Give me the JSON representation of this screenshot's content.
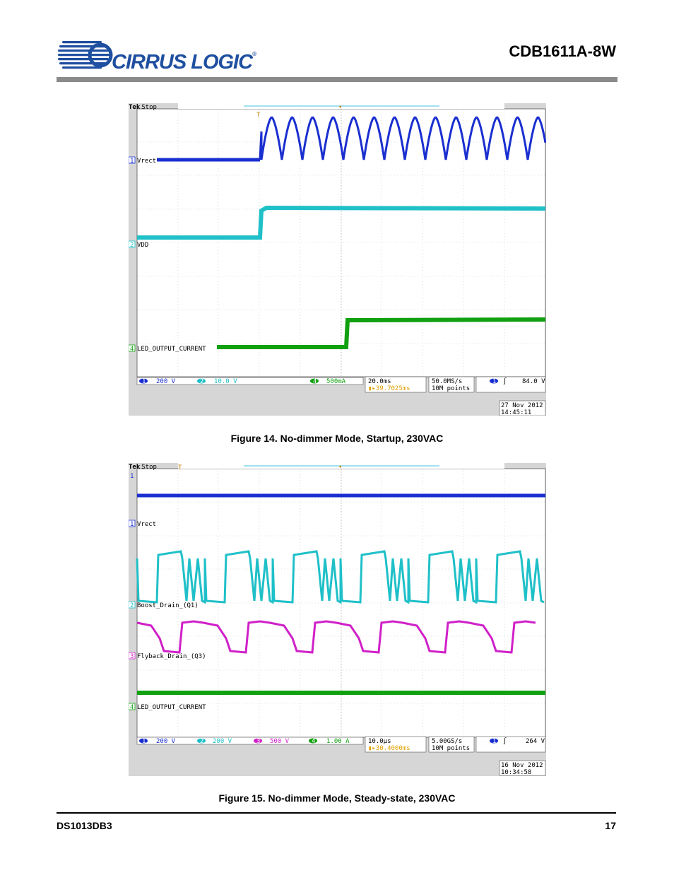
{
  "header": {
    "company": "CIRRUS LOGIC",
    "registered": "®",
    "doc_title": "CDB1611A-8W",
    "logo_icon": "cirrus-logic-swoosh-icon"
  },
  "figures": [
    {
      "caption": "Figure 14.  No-dimmer Mode, Startup, 230VAC",
      "brand": "Tek",
      "state": "Stop",
      "channels": [
        {
          "num": "1",
          "label": "Vrect",
          "color": "#1a2fd0",
          "scale": "200 V"
        },
        {
          "num": "2",
          "label": "VDD",
          "color": "#1fc0c8",
          "scale": "10.0 V"
        },
        {
          "num": "4",
          "label": "LED_OUTPUT_CURRENT",
          "color": "#10a010",
          "scale": "500mA"
        }
      ],
      "timebase": "20.0ms",
      "trigger_pos": "▮▸39.7025ms",
      "sample_rate": "50.0MS/s",
      "record_length": "10M points",
      "trigger_ch": "1",
      "trigger_level": "84.0 V",
      "date": "27 Nov 2012",
      "time": "14:45:11"
    },
    {
      "caption": "Figure 15.  No-dimmer Mode, Steady-state, 230VAC",
      "brand": "Tek",
      "state": "Stop",
      "channels": [
        {
          "num": "1",
          "label": "Vrect",
          "color": "#1a2fd0",
          "scale": "200 V"
        },
        {
          "num": "2",
          "label": "Boost_Drain_(Q1)",
          "color": "#1fc0c8",
          "scale": "200 V"
        },
        {
          "num": "3",
          "label": "Flyback_Drain_(Q3)",
          "color": "#d020c8",
          "scale": "500 V"
        },
        {
          "num": "4",
          "label": "LED_OUTPUT_CURRENT",
          "color": "#10a010",
          "scale": "1.00 A"
        }
      ],
      "timebase": "10.0µs",
      "trigger_pos": "▮▸30.4000ms",
      "sample_rate": "5.00GS/s",
      "record_length": "10M points",
      "trigger_ch": "1",
      "trigger_level": "264 V",
      "date": "16 Nov 2012",
      "time": "10:34:58"
    }
  ],
  "footer": {
    "doc_id": "DS1013DB3",
    "page": "17"
  }
}
